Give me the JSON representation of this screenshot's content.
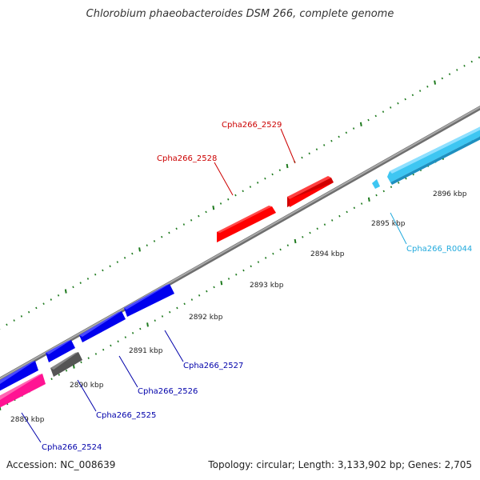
{
  "title": "Chlorobium phaeobacteroides DSM 266, complete genome",
  "footer": {
    "accession": "Accession: NC_008639",
    "summary": "Topology: circular; Length: 3,133,902 bp; Genes: 2,705"
  },
  "colors": {
    "backbone": "#8a8a8a",
    "tick": "#1e7a1e",
    "red_gene": "#ff0000",
    "blue_gene": "#0000ee",
    "gray_gene": "#555555",
    "pink_gene": "#ff1493",
    "cyan_gene": "#3ec6f2",
    "red_label": "#cc0000",
    "blue_label": "#0000aa",
    "cyan_label": "#22aadd"
  },
  "axis": {
    "ticks": [
      {
        "label": "2889 kbp"
      },
      {
        "label": "2890 kbp"
      },
      {
        "label": "2891 kbp"
      },
      {
        "label": "2892 kbp"
      },
      {
        "label": "2893 kbp"
      },
      {
        "label": "2894 kbp"
      },
      {
        "label": "2895 kbp"
      },
      {
        "label": "2896 kbp"
      }
    ]
  },
  "genes": [
    {
      "name": "Cpha266_2524",
      "color": "pink"
    },
    {
      "name": "Cpha266_2525",
      "color": "gray"
    },
    {
      "name": "Cpha266_2526",
      "color": "blue"
    },
    {
      "name": "Cpha266_2527",
      "color": "blue"
    },
    {
      "name": "Cpha266_2528",
      "color": "red"
    },
    {
      "name": "Cpha266_2529",
      "color": "red"
    },
    {
      "name": "Cpha266_R0044",
      "color": "cyan"
    }
  ]
}
